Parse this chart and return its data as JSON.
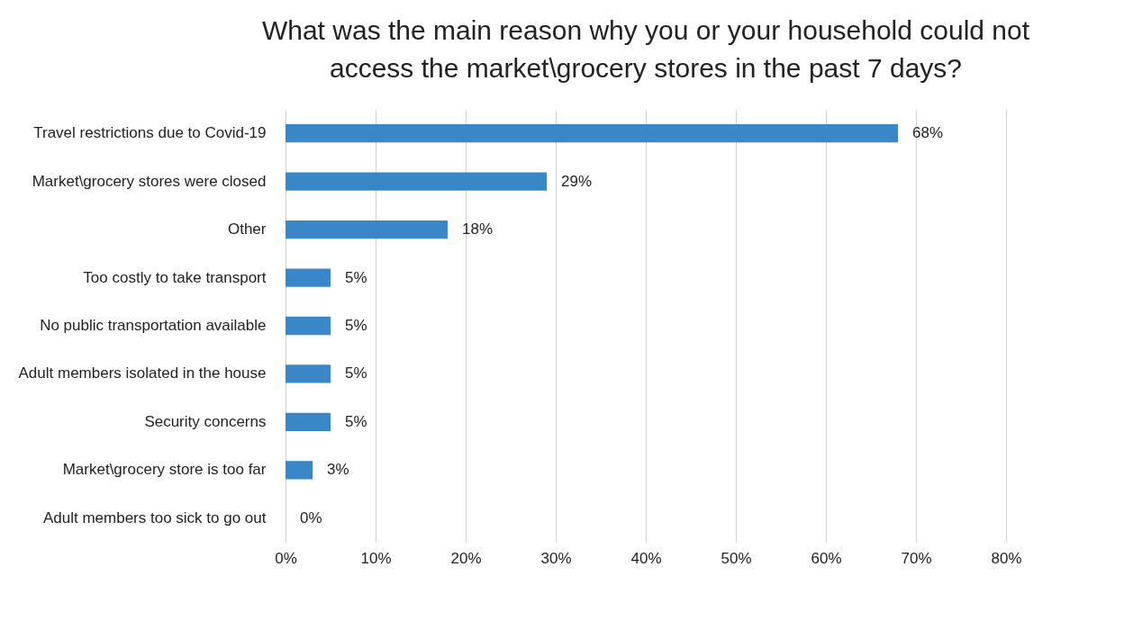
{
  "chart_data": {
    "type": "bar",
    "orientation": "horizontal",
    "title": "What was the main reason why you or your household could not access the market\\grocery stores in the past 7 days?",
    "categories": [
      "Travel restrictions due to Covid-19",
      "Market\\grocery stores were closed",
      "Other",
      "Too costly to take transport",
      "No public transportation available",
      "Adult members isolated in the house",
      "Security concerns",
      "Market\\grocery store is too far",
      "Adult members too sick to go out"
    ],
    "values": [
      68,
      29,
      18,
      5,
      5,
      5,
      5,
      3,
      0
    ],
    "value_labels": [
      "68%",
      "29%",
      "18%",
      "5%",
      "5%",
      "5%",
      "5%",
      "3%",
      "0%"
    ],
    "color": "#3a87c8",
    "xlim": [
      0,
      80
    ],
    "xticks": [
      {
        "value": 0,
        "label": "0%"
      },
      {
        "value": 10,
        "label": "10%"
      },
      {
        "value": 20,
        "label": "20%"
      },
      {
        "value": 30,
        "label": "30%"
      },
      {
        "value": 40,
        "label": "40%"
      },
      {
        "value": 50,
        "label": "50%"
      },
      {
        "value": 60,
        "label": "60%"
      },
      {
        "value": 70,
        "label": "70%"
      },
      {
        "value": 80,
        "label": "80%"
      }
    ],
    "grid": "x"
  }
}
